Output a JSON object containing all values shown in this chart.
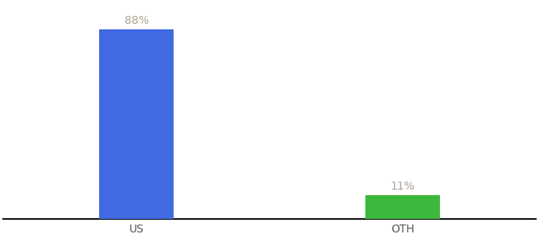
{
  "categories": [
    "US",
    "OTH"
  ],
  "values": [
    88,
    11
  ],
  "bar_colors": [
    "#4169e1",
    "#3cb83c"
  ],
  "bar_labels": [
    "88%",
    "11%"
  ],
  "label_color": "#b0a090",
  "background_color": "#ffffff",
  "axis_line_color": "#111111",
  "tick_label_color": "#555555",
  "label_fontsize": 10,
  "tick_fontsize": 10,
  "ylim": [
    0,
    100
  ],
  "bar_width": 0.28,
  "x_positions": [
    1,
    2
  ],
  "xlim": [
    0.5,
    2.5
  ]
}
